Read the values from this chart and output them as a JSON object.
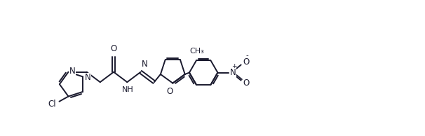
{
  "bg_color": "#ffffff",
  "line_color": "#1a1a2e",
  "line_width": 1.4,
  "font_size": 8.5,
  "xlim": [
    0,
    11
  ],
  "ylim": [
    0,
    4
  ]
}
